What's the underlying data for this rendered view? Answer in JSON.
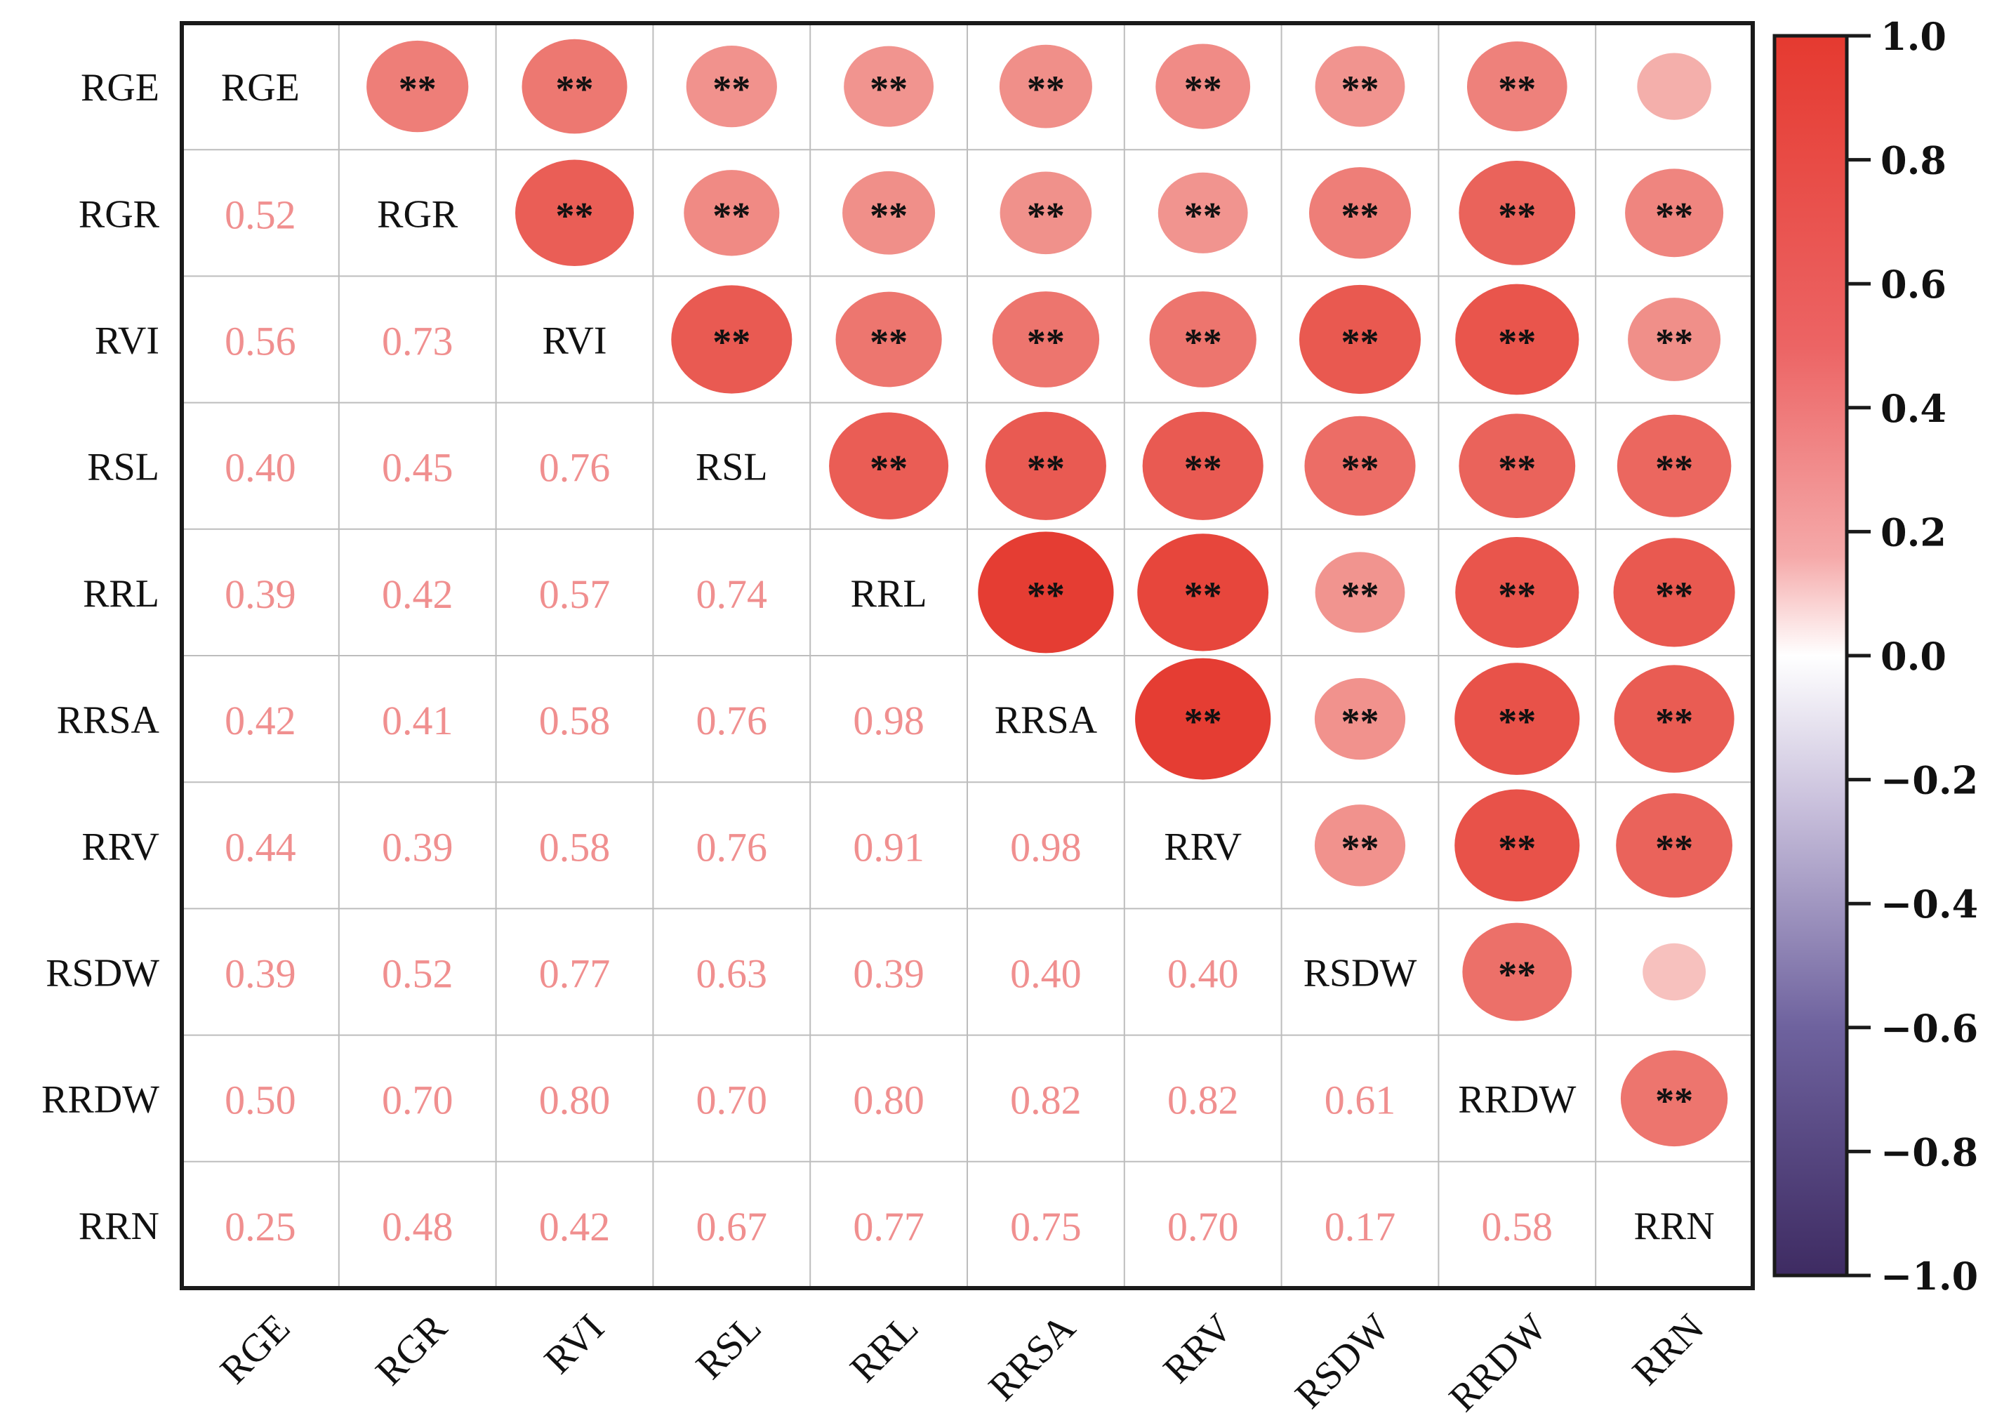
{
  "chart_data": {
    "type": "heatmap",
    "title": "",
    "variables": [
      "RGE",
      "RGR",
      "RVI",
      "RSL",
      "RRL",
      "RRSA",
      "RRV",
      "RSDW",
      "RRDW",
      "RRN"
    ],
    "lower_triangle_values": [
      [],
      [
        0.52
      ],
      [
        0.56,
        0.73
      ],
      [
        0.4,
        0.45,
        0.76
      ],
      [
        0.39,
        0.42,
        0.57,
        0.74
      ],
      [
        0.42,
        0.41,
        0.58,
        0.76,
        0.98
      ],
      [
        0.44,
        0.39,
        0.58,
        0.76,
        0.91,
        0.98
      ],
      [
        0.39,
        0.52,
        0.77,
        0.63,
        0.39,
        0.4,
        0.4
      ],
      [
        0.5,
        0.7,
        0.8,
        0.7,
        0.8,
        0.82,
        0.82,
        0.61
      ],
      [
        0.25,
        0.48,
        0.42,
        0.67,
        0.77,
        0.75,
        0.7,
        0.17,
        0.58
      ]
    ],
    "value_labels": [
      [],
      [
        "0.52"
      ],
      [
        "0.56",
        "0.73"
      ],
      [
        "0.40",
        "0.45",
        "0.76"
      ],
      [
        "0.39",
        "0.42",
        "0.57",
        "0.74"
      ],
      [
        "0.42",
        "0.41",
        "0.58",
        "0.76",
        "0.98"
      ],
      [
        "0.44",
        "0.39",
        "0.58",
        "0.76",
        "0.91",
        "0.98"
      ],
      [
        "0.39",
        "0.52",
        "0.77",
        "0.63",
        "0.39",
        "0.40",
        "0.40"
      ],
      [
        "0.50",
        "0.70",
        "0.80",
        "0.70",
        "0.80",
        "0.82",
        "0.82",
        "0.61"
      ],
      [
        "0.25",
        "0.48",
        "0.42",
        "0.67",
        "0.77",
        "0.75",
        "0.70",
        "0.17",
        "0.58"
      ]
    ],
    "upper_triangle": "circles sized and colored by correlation",
    "significance_marker": "**",
    "non_significant_pairs": [
      [
        "RGE",
        "RRN"
      ],
      [
        "RSDW",
        "RRN"
      ]
    ],
    "colorbar": {
      "range": [
        -1.0,
        1.0
      ],
      "ticks": [
        1.0,
        0.8,
        0.6,
        0.4,
        0.2,
        0.0,
        -0.2,
        -0.4,
        -0.6,
        -0.8,
        -1.0
      ],
      "tick_labels": [
        "1.0",
        "0.8",
        "0.6",
        "0.4",
        "0.2",
        "0.0",
        "−0.2",
        "−0.4",
        "−0.6",
        "−0.8",
        "−1.0"
      ],
      "color_high": "#e53a30",
      "color_mid": "#ffffff",
      "color_low": "#3d2b6b"
    },
    "label_color": "#f08f8f",
    "xtick_rotation": "-45deg",
    "grid": true
  }
}
